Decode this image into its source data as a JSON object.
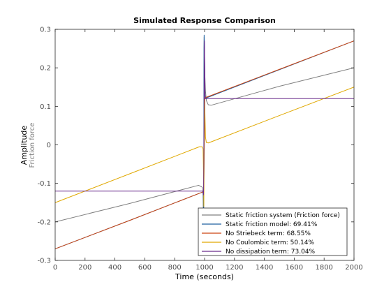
{
  "chart_data": {
    "type": "line",
    "title": "Simulated Response Comparison",
    "xlabel": "Time (seconds)",
    "ylabel": "Amplitude",
    "ylabel_secondary": "Friction force",
    "xlim": [
      0,
      2000
    ],
    "ylim": [
      -0.3,
      0.3
    ],
    "xticks": [
      0,
      200,
      400,
      600,
      800,
      1000,
      1200,
      1400,
      1600,
      1800,
      2000
    ],
    "yticks": [
      -0.3,
      -0.2,
      -0.1,
      0,
      0.1,
      0.2,
      0.3
    ],
    "grid": false,
    "legend_position": "bottom-right",
    "series": [
      {
        "name": "Static friction system (Friction force)",
        "color": "#808080",
        "points": [
          [
            0,
            -0.2
          ],
          [
            500,
            -0.152
          ],
          [
            960,
            -0.105
          ],
          [
            985,
            -0.11
          ],
          [
            990,
            -0.13
          ],
          [
            993,
            -0.23
          ],
          [
            995,
            0.0
          ],
          [
            997,
            0.28
          ],
          [
            999,
            0.24
          ],
          [
            1002,
            0.18
          ],
          [
            1006,
            0.14
          ],
          [
            1012,
            0.115
          ],
          [
            1025,
            0.104
          ],
          [
            1045,
            0.103
          ],
          [
            1500,
            0.152
          ],
          [
            2000,
            0.2
          ]
        ]
      },
      {
        "name": "Static friction model: 69.41%",
        "color": "#1f5f9f",
        "points": [
          [
            0,
            -0.27
          ],
          [
            500,
            -0.196
          ],
          [
            990,
            -0.122
          ],
          [
            992,
            -0.14
          ],
          [
            994,
            -0.2
          ],
          [
            995,
            -0.04
          ],
          [
            996,
            0.25
          ],
          [
            997,
            0.285
          ],
          [
            999,
            0.26
          ],
          [
            1001,
            0.2
          ],
          [
            1003,
            0.13
          ],
          [
            1006,
            0.121
          ],
          [
            1500,
            0.195
          ],
          [
            2000,
            0.27
          ]
        ]
      },
      {
        "name": "No Striebeck term: 68.55%",
        "color": "#cc4411",
        "points": [
          [
            0,
            -0.27
          ],
          [
            500,
            -0.196
          ],
          [
            990,
            -0.122
          ],
          [
            994,
            -0.125
          ],
          [
            998,
            -0.02
          ],
          [
            1002,
            0.121
          ],
          [
            1008,
            0.123
          ],
          [
            1500,
            0.196
          ],
          [
            2000,
            0.27
          ]
        ]
      },
      {
        "name": "No Coulombic term: 50.14%",
        "color": "#e0a800",
        "points": [
          [
            0,
            -0.15
          ],
          [
            500,
            -0.075
          ],
          [
            965,
            -0.005
          ],
          [
            985,
            -0.005
          ],
          [
            990,
            -0.01
          ],
          [
            993,
            -0.08
          ],
          [
            995,
            -0.16
          ],
          [
            997,
            -0.03
          ],
          [
            999,
            0.12
          ],
          [
            1002,
            0.09
          ],
          [
            1006,
            0.02
          ],
          [
            1012,
            0.006
          ],
          [
            1025,
            0.005
          ],
          [
            1500,
            0.076
          ],
          [
            2000,
            0.15
          ]
        ]
      },
      {
        "name": "No dissipation term: 73.04%",
        "color": "#6a2b8c",
        "points": [
          [
            0,
            -0.12
          ],
          [
            990,
            -0.12
          ],
          [
            993,
            -0.13
          ],
          [
            995,
            -0.05
          ],
          [
            997,
            0.1
          ],
          [
            998,
            0.25
          ],
          [
            999,
            0.27
          ],
          [
            1001,
            0.2
          ],
          [
            1003,
            0.12
          ],
          [
            1008,
            0.12
          ],
          [
            2000,
            0.12
          ]
        ]
      }
    ]
  }
}
